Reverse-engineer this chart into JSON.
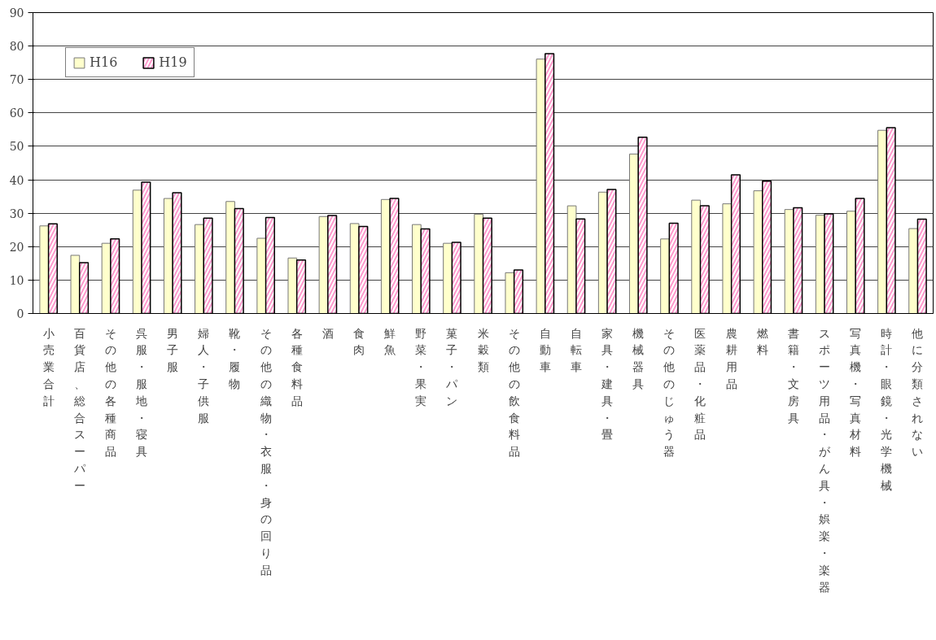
{
  "chart_data": {
    "type": "bar",
    "categories": [
      "小売業合計",
      "百貨店、総合スーパー",
      "その他の各種商品",
      "呉服・服地・寝具",
      "男子服",
      "婦人・子供服",
      "靴・履物",
      "その他の織物・衣服・身の回り品",
      "各種食料品",
      "酒",
      "食肉",
      "鮮魚",
      "野菜・果実",
      "菓子・パン",
      "米穀類",
      "その他の飲食料品",
      "自動車",
      "自転車",
      "家具・建具・畳",
      "機械器具",
      "その他のじゅう器",
      "医薬品・化粧品",
      "農耕用品",
      "燃料",
      "書籍・文房具",
      "スポーツ用品・がん具・娯楽・楽器",
      "写真機・写真材料",
      "時計・眼鏡・光学機械",
      "他に分類されない"
    ],
    "series": [
      {
        "name": "H16",
        "color": "#ffffcc",
        "values": [
          26.2,
          17.4,
          21.0,
          36.9,
          34.4,
          26.6,
          33.5,
          22.5,
          16.6,
          29.0,
          26.9,
          34.1,
          26.6,
          21.0,
          29.7,
          12.2,
          76.1,
          32.2,
          36.3,
          47.7,
          22.3,
          33.9,
          32.8,
          36.7,
          31.1,
          29.4,
          30.6,
          54.8,
          25.4
        ]
      },
      {
        "name": "H19",
        "color": "#ff99cc",
        "values": [
          26.8,
          15.2,
          22.3,
          39.3,
          36.1,
          28.5,
          31.4,
          28.7,
          16.0,
          29.3,
          26.0,
          34.4,
          25.3,
          21.3,
          28.5,
          13.0,
          77.7,
          28.3,
          37.1,
          52.7,
          27.0,
          32.2,
          41.5,
          39.6,
          31.6,
          29.8,
          34.4,
          55.6,
          28.2
        ]
      }
    ],
    "ylim": [
      0,
      90
    ],
    "yticks": [
      0,
      10,
      20,
      30,
      40,
      50,
      60,
      70,
      80,
      90
    ],
    "grid": "y",
    "legend": "top left"
  }
}
